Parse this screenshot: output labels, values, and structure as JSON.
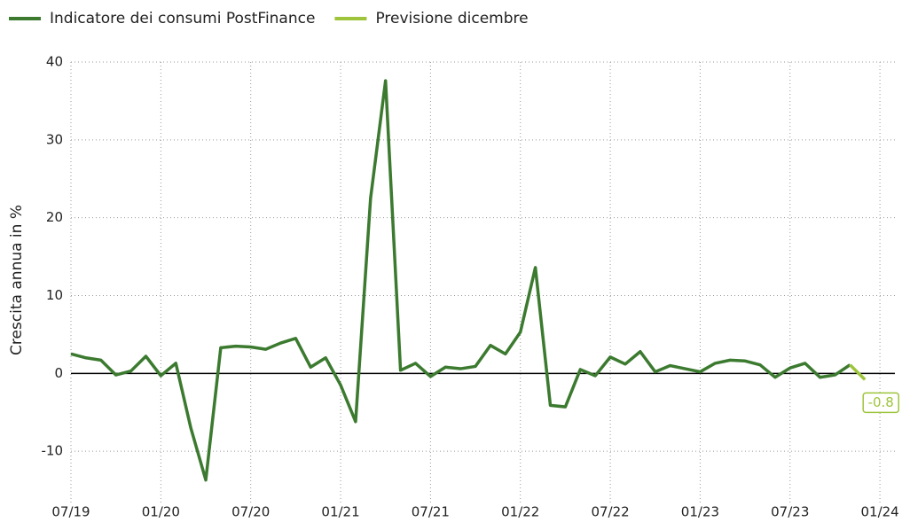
{
  "chart_data": {
    "type": "line",
    "y_label": "Crescita annua in %",
    "x": [
      "07/19",
      "08/19",
      "09/19",
      "10/19",
      "11/19",
      "12/19",
      "01/20",
      "02/20",
      "03/20",
      "04/20",
      "05/20",
      "06/20",
      "07/20",
      "08/20",
      "09/20",
      "10/20",
      "11/20",
      "12/20",
      "01/21",
      "02/21",
      "03/21",
      "04/21",
      "05/21",
      "06/21",
      "07/21",
      "08/21",
      "09/21",
      "10/21",
      "11/21",
      "12/21",
      "01/22",
      "02/22",
      "03/22",
      "04/22",
      "05/22",
      "06/22",
      "07/22",
      "08/22",
      "09/22",
      "10/22",
      "11/22",
      "12/22",
      "01/23",
      "02/23",
      "03/23",
      "04/23",
      "05/23",
      "06/23",
      "07/23",
      "08/23",
      "09/23",
      "10/23",
      "11/23",
      "12/23"
    ],
    "series": [
      {
        "name": "Indicatore dei consumi PostFinance",
        "color": "#3b7a2f",
        "values": [
          2.5,
          2.0,
          1.7,
          -0.2,
          0.3,
          2.2,
          -0.3,
          1.3,
          -7.0,
          -13.7,
          3.3,
          3.5,
          3.4,
          3.1,
          3.9,
          4.5,
          0.8,
          2.0,
          -1.5,
          -6.2,
          22.5,
          37.6,
          0.4,
          1.3,
          -0.4,
          0.8,
          0.6,
          0.9,
          3.6,
          2.5,
          5.3,
          13.6,
          -4.1,
          -4.3,
          0.5,
          -0.3,
          2.1,
          1.2,
          2.8,
          0.2,
          1.0,
          0.6,
          0.2,
          1.3,
          1.7,
          1.6,
          1.1,
          -0.5,
          0.7,
          1.3,
          -0.5,
          -0.2,
          1.1,
          null
        ]
      },
      {
        "name": "Previsione dicembre",
        "color": "#9dc43a",
        "values": [
          null,
          null,
          null,
          null,
          null,
          null,
          null,
          null,
          null,
          null,
          null,
          null,
          null,
          null,
          null,
          null,
          null,
          null,
          null,
          null,
          null,
          null,
          null,
          null,
          null,
          null,
          null,
          null,
          null,
          null,
          null,
          null,
          null,
          null,
          null,
          null,
          null,
          null,
          null,
          null,
          null,
          null,
          null,
          null,
          null,
          null,
          null,
          null,
          null,
          null,
          null,
          null,
          1.1,
          -0.8
        ]
      }
    ],
    "xlim": [
      "07/19",
      "02/24"
    ],
    "xticks": [
      "07/19",
      "01/20",
      "07/20",
      "01/21",
      "07/21",
      "01/22",
      "07/22",
      "01/23",
      "07/23",
      "01/24"
    ],
    "ylim": [
      -16.7,
      40
    ],
    "yticks": [
      -10,
      0,
      10,
      20,
      30,
      40
    ],
    "grid": true,
    "legend": "top-left"
  }
}
